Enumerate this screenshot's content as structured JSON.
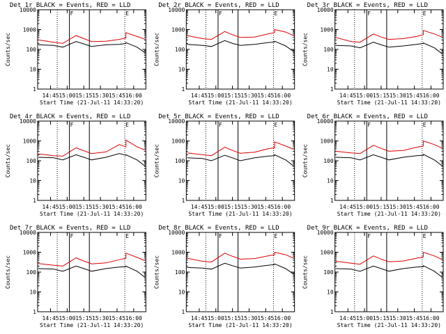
{
  "figure": {
    "start_time_label": "Start Time (21-Jul-11 14:33:20)",
    "ylabel": "Counts/sec",
    "xticks": [
      "14:45",
      "15:00",
      "15:15",
      "15:30",
      "15:45",
      "16:00"
    ],
    "yticks": [
      "1",
      "10",
      "100",
      "1000",
      "10000"
    ]
  },
  "colors": {
    "events": "#000000",
    "lld": "#dd0000",
    "axes": "#000000",
    "background": "#ffffff"
  },
  "chart_data": [
    {
      "type": "line",
      "title": "Det 1r BLACK = Events, RED = LLD",
      "xlabel": "Start Time (21-Jul-11 14:33:20)",
      "ylabel": "Counts/sec",
      "yscale": "log",
      "xlim": [
        "14:33:20",
        "16:11:00"
      ],
      "ylim": [
        1,
        10000
      ],
      "markers": [
        {
          "time": "14:51",
          "style": "dotted"
        },
        {
          "time": "15:02",
          "label": "F",
          "style": "solid"
        },
        {
          "time": "15:20",
          "style": "solid"
        },
        {
          "time": "15:52",
          "label": "E",
          "style": "dotted"
        }
      ],
      "series": [
        {
          "name": "LLD",
          "x": [
            "14:34",
            "14:48",
            "14:56",
            "15:08",
            "15:15",
            "15:22",
            "15:35",
            "15:47",
            "15:53",
            "15:53",
            "16:03",
            "16:10"
          ],
          "values": [
            300,
            230,
            200,
            500,
            350,
            250,
            260,
            320,
            380,
            700,
            450,
            330
          ]
        },
        {
          "name": "Events",
          "x": [
            "14:34",
            "14:48",
            "14:56",
            "15:08",
            "15:15",
            "15:22",
            "15:35",
            "15:47",
            "15:53",
            "15:53",
            "16:03",
            "16:10"
          ],
          "values": [
            170,
            160,
            130,
            250,
            190,
            140,
            170,
            180,
            200,
            220,
            130,
            70
          ]
        }
      ]
    },
    {
      "type": "line",
      "title": "Det 2r BLACK = Events, RED = LLD",
      "xlabel": "Start Time (21-Jul-11 14:33:20)",
      "ylabel": "Counts/sec",
      "yscale": "log",
      "xlim": [
        "14:33:20",
        "16:11:00"
      ],
      "ylim": [
        1,
        10000
      ],
      "markers": [
        {
          "time": "14:51",
          "style": "dotted"
        },
        {
          "time": "15:02",
          "label": "F",
          "style": "solid"
        },
        {
          "time": "15:20",
          "style": "solid"
        },
        {
          "time": "15:52",
          "label": "E",
          "style": "dotted"
        }
      ],
      "series": [
        {
          "name": "LLD",
          "x": [
            "14:34",
            "14:48",
            "14:56",
            "15:08",
            "15:15",
            "15:22",
            "15:35",
            "15:47",
            "15:53",
            "15:53",
            "16:03",
            "16:10"
          ],
          "values": [
            500,
            350,
            320,
            800,
            550,
            400,
            420,
            600,
            700,
            1000,
            750,
            500
          ]
        },
        {
          "name": "Events",
          "x": [
            "14:34",
            "14:48",
            "14:56",
            "15:08",
            "15:15",
            "15:22",
            "15:35",
            "15:47",
            "15:53",
            "15:53",
            "16:03",
            "16:10"
          ],
          "values": [
            180,
            160,
            140,
            280,
            200,
            160,
            180,
            220,
            240,
            260,
            150,
            80
          ]
        }
      ]
    },
    {
      "type": "line",
      "title": "Det 3r BLACK = Events, RED = LLD",
      "xlabel": "Start Time (21-Jul-11 14:33:20)",
      "ylabel": "Counts/sec",
      "yscale": "log",
      "xlim": [
        "14:33:20",
        "16:11:00"
      ],
      "ylim": [
        1,
        10000
      ],
      "markers": [
        {
          "time": "14:51",
          "style": "dotted"
        },
        {
          "time": "15:02",
          "label": "F",
          "style": "solid"
        },
        {
          "time": "15:20",
          "style": "solid"
        },
        {
          "time": "15:52",
          "label": "E",
          "style": "dotted"
        }
      ],
      "series": [
        {
          "name": "LLD",
          "x": [
            "14:34",
            "14:48",
            "14:56",
            "15:08",
            "15:15",
            "15:22",
            "15:35",
            "15:47",
            "15:53",
            "15:53",
            "16:03",
            "16:10"
          ],
          "values": [
            400,
            250,
            230,
            600,
            420,
            320,
            350,
            450,
            550,
            900,
            600,
            420
          ]
        },
        {
          "name": "Events",
          "x": [
            "14:34",
            "14:48",
            "14:56",
            "15:08",
            "15:15",
            "15:22",
            "15:35",
            "15:47",
            "15:53",
            "15:53",
            "16:03",
            "16:10"
          ],
          "values": [
            160,
            150,
            120,
            230,
            170,
            130,
            150,
            180,
            200,
            210,
            120,
            60
          ]
        }
      ]
    },
    {
      "type": "line",
      "title": "Det 4r BLACK = Events, RED = LLD",
      "xlabel": "Start Time (21-Jul-11 14:33:20)",
      "ylabel": "Counts/sec",
      "yscale": "log",
      "xlim": [
        "14:33:20",
        "16:11:00"
      ],
      "ylim": [
        1,
        10000
      ],
      "markers": [
        {
          "time": "14:51",
          "style": "dotted"
        },
        {
          "time": "15:02",
          "label": "F",
          "style": "solid"
        },
        {
          "time": "15:20",
          "style": "solid"
        },
        {
          "time": "15:52",
          "label": "E",
          "style": "dotted"
        }
      ],
      "series": [
        {
          "name": "LLD",
          "x": [
            "14:34",
            "14:48",
            "14:56",
            "15:08",
            "15:15",
            "15:22",
            "15:35",
            "15:47",
            "15:53",
            "15:53",
            "16:03",
            "16:10"
          ],
          "values": [
            220,
            180,
            170,
            450,
            320,
            230,
            280,
            650,
            500,
            1100,
            500,
            350
          ]
        },
        {
          "name": "Events",
          "x": [
            "14:34",
            "14:48",
            "14:56",
            "15:08",
            "15:15",
            "15:22",
            "15:35",
            "15:47",
            "15:53",
            "15:53",
            "16:03",
            "16:10"
          ],
          "values": [
            150,
            140,
            110,
            200,
            150,
            110,
            150,
            230,
            190,
            200,
            110,
            55
          ]
        }
      ]
    },
    {
      "type": "line",
      "title": "Det 5r BLACK = Events, RED = LLD",
      "xlabel": "Start Time (21-Jul-11 14:33:20)",
      "ylabel": "Counts/sec",
      "yscale": "log",
      "xlim": [
        "14:33:20",
        "16:11:00"
      ],
      "ylim": [
        1,
        10000
      ],
      "markers": [
        {
          "time": "14:51",
          "style": "dotted"
        },
        {
          "time": "15:02",
          "label": "F",
          "style": "solid"
        },
        {
          "time": "15:20",
          "style": "solid"
        },
        {
          "time": "15:52",
          "label": "E",
          "style": "dotted"
        }
      ],
      "series": [
        {
          "name": "LLD",
          "x": [
            "14:34",
            "14:48",
            "14:56",
            "15:08",
            "15:15",
            "15:22",
            "15:35",
            "15:47",
            "15:53",
            "15:53",
            "16:03",
            "16:10"
          ],
          "values": [
            250,
            200,
            180,
            480,
            330,
            240,
            270,
            400,
            450,
            900,
            550,
            380
          ]
        },
        {
          "name": "Events",
          "x": [
            "14:34",
            "14:48",
            "14:56",
            "15:08",
            "15:15",
            "15:22",
            "15:35",
            "15:47",
            "15:53",
            "15:53",
            "16:03",
            "16:10"
          ],
          "values": [
            140,
            130,
            100,
            190,
            140,
            100,
            140,
            170,
            180,
            200,
            110,
            55
          ]
        }
      ]
    },
    {
      "type": "line",
      "title": "Det 6r BLACK = Events, RED = LLD",
      "xlabel": "Start Time (21-Jul-11 14:33:20)",
      "ylabel": "Counts/sec",
      "yscale": "log",
      "xlim": [
        "14:33:20",
        "16:11:00"
      ],
      "ylim": [
        1,
        10000
      ],
      "markers": [
        {
          "time": "14:51",
          "style": "dotted"
        },
        {
          "time": "15:02",
          "label": "F",
          "style": "solid"
        },
        {
          "time": "15:20",
          "style": "solid"
        },
        {
          "time": "15:52",
          "label": "E",
          "style": "dotted"
        }
      ],
      "series": [
        {
          "name": "LLD",
          "x": [
            "14:34",
            "14:48",
            "14:56",
            "15:08",
            "15:15",
            "15:22",
            "15:35",
            "15:47",
            "15:53",
            "15:53",
            "16:03",
            "16:10"
          ],
          "values": [
            300,
            250,
            230,
            600,
            420,
            300,
            330,
            480,
            550,
            1000,
            650,
            430
          ]
        },
        {
          "name": "Events",
          "x": [
            "14:34",
            "14:48",
            "14:56",
            "15:08",
            "15:15",
            "15:22",
            "15:35",
            "15:47",
            "15:53",
            "15:53",
            "16:03",
            "16:10"
          ],
          "values": [
            150,
            140,
            110,
            200,
            150,
            110,
            150,
            180,
            190,
            210,
            110,
            55
          ]
        }
      ]
    },
    {
      "type": "line",
      "title": "Det 7r BLACK = Events, RED = LLD",
      "xlabel": "Start Time (21-Jul-11 14:33:20)",
      "ylabel": "Counts/sec",
      "yscale": "log",
      "xlim": [
        "14:33:20",
        "16:11:00"
      ],
      "ylim": [
        1,
        10000
      ],
      "markers": [
        {
          "time": "14:51",
          "style": "dotted"
        },
        {
          "time": "15:02",
          "label": "F",
          "style": "solid"
        },
        {
          "time": "15:20",
          "style": "solid"
        },
        {
          "time": "15:52",
          "label": "E",
          "style": "dotted"
        }
      ],
      "series": [
        {
          "name": "LLD",
          "x": [
            "14:34",
            "14:48",
            "14:56",
            "15:08",
            "15:15",
            "15:22",
            "15:35",
            "15:47",
            "15:53",
            "15:53",
            "16:03",
            "16:10"
          ],
          "values": [
            270,
            220,
            200,
            520,
            360,
            260,
            290,
            420,
            500,
            900,
            550,
            380
          ]
        },
        {
          "name": "Events",
          "x": [
            "14:34",
            "14:48",
            "14:56",
            "15:08",
            "15:15",
            "15:22",
            "15:35",
            "15:47",
            "15:53",
            "15:53",
            "16:03",
            "16:10"
          ],
          "values": [
            150,
            140,
            110,
            200,
            150,
            110,
            150,
            180,
            190,
            200,
            110,
            55
          ]
        }
      ]
    },
    {
      "type": "line",
      "title": "Det 8r BLACK = Events, RED = LLD",
      "xlabel": "Start Time (21-Jul-11 14:33:20)",
      "ylabel": "Counts/sec",
      "yscale": "log",
      "xlim": [
        "14:33:20",
        "16:11:00"
      ],
      "ylim": [
        1,
        10000
      ],
      "markers": [
        {
          "time": "14:51",
          "style": "dotted"
        },
        {
          "time": "15:02",
          "label": "F",
          "style": "solid"
        },
        {
          "time": "15:20",
          "style": "solid"
        },
        {
          "time": "15:52",
          "label": "E",
          "style": "dotted"
        }
      ],
      "series": [
        {
          "name": "LLD",
          "x": [
            "14:34",
            "14:48",
            "14:56",
            "15:08",
            "15:15",
            "15:22",
            "15:35",
            "15:47",
            "15:53",
            "15:53",
            "16:03",
            "16:10"
          ],
          "values": [
            500,
            350,
            320,
            900,
            620,
            450,
            480,
            650,
            750,
            1000,
            750,
            500
          ]
        },
        {
          "name": "Events",
          "x": [
            "14:34",
            "14:48",
            "14:56",
            "15:08",
            "15:15",
            "15:22",
            "15:35",
            "15:47",
            "15:53",
            "15:53",
            "16:03",
            "16:10"
          ],
          "values": [
            170,
            160,
            140,
            280,
            210,
            160,
            180,
            220,
            240,
            260,
            150,
            80
          ]
        }
      ]
    },
    {
      "type": "line",
      "title": "Det 9r BLACK = Events, RED = LLD",
      "xlabel": "Start Time (21-Jul-11 14:33:20)",
      "ylabel": "Counts/sec",
      "yscale": "log",
      "xlim": [
        "14:33:20",
        "16:11:00"
      ],
      "ylim": [
        1,
        10000
      ],
      "markers": [
        {
          "time": "14:51",
          "style": "dotted"
        },
        {
          "time": "15:02",
          "label": "F",
          "style": "solid"
        },
        {
          "time": "15:20",
          "style": "solid"
        },
        {
          "time": "15:52",
          "label": "E",
          "style": "dotted"
        }
      ],
      "series": [
        {
          "name": "LLD",
          "x": [
            "14:34",
            "14:48",
            "14:56",
            "15:08",
            "15:15",
            "15:22",
            "15:35",
            "15:47",
            "15:53",
            "15:53",
            "16:03",
            "16:10"
          ],
          "values": [
            350,
            280,
            250,
            650,
            450,
            330,
            360,
            500,
            580,
            1000,
            650,
            430
          ]
        },
        {
          "name": "Events",
          "x": [
            "14:34",
            "14:48",
            "14:56",
            "15:08",
            "15:15",
            "15:22",
            "15:35",
            "15:47",
            "15:53",
            "15:53",
            "16:03",
            "16:10"
          ],
          "values": [
            150,
            140,
            110,
            200,
            150,
            110,
            150,
            180,
            190,
            210,
            110,
            55
          ]
        }
      ]
    }
  ]
}
